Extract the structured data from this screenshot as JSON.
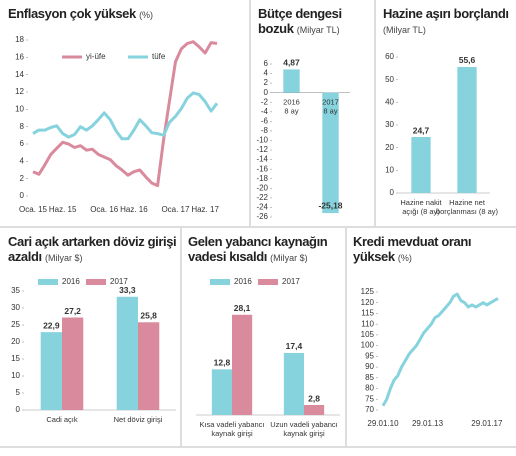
{
  "chart_data": [
    {
      "type": "line",
      "title": "Enflasyon çok yüksek",
      "subtitle": "(%)",
      "categories": [
        "Oca. 15",
        null,
        null,
        null,
        null,
        "Haz. 15",
        null,
        null,
        null,
        null,
        null,
        null,
        "Oca. 16",
        null,
        null,
        null,
        null,
        "Haz. 16",
        null,
        null,
        null,
        null,
        null,
        null,
        "Oca. 17",
        null,
        null,
        null,
        null,
        "Haz. 17",
        null,
        null
      ],
      "series": [
        {
          "name": "yi-üfe",
          "color": "#d98a9c",
          "values": [
            2.8,
            2.5,
            3.6,
            4.8,
            5.5,
            6.2,
            6.0,
            5.6,
            5.8,
            5.3,
            5.4,
            4.8,
            4.5,
            4.2,
            3.5,
            3.0,
            2.4,
            2.8,
            3.0,
            2.2,
            1.5,
            1.2,
            6.5,
            11.0,
            15.5,
            17.0,
            17.6,
            17.8,
            17.2,
            16.5,
            17.7,
            17.6
          ]
        },
        {
          "name": "tüfe",
          "color": "#86d3de",
          "values": [
            7.2,
            7.6,
            7.6,
            7.9,
            8.1,
            7.2,
            6.8,
            7.1,
            8.0,
            7.6,
            8.1,
            8.8,
            9.6,
            8.8,
            7.5,
            6.6,
            6.6,
            7.6,
            8.8,
            8.1,
            7.3,
            7.2,
            7.0,
            8.5,
            9.2,
            10.1,
            11.3,
            11.9,
            11.7,
            10.9,
            9.8,
            10.7
          ]
        }
      ],
      "ylim": [
        0,
        18
      ],
      "yticks": [
        0,
        2,
        4,
        6,
        8,
        10,
        12,
        14,
        16,
        18
      ]
    },
    {
      "type": "bar",
      "title": "Bütçe dengesi bozuk",
      "subtitle": "(Milyar TL)",
      "categories": [
        [
          "2016",
          "8 ay"
        ],
        [
          "2017",
          "8 ay"
        ]
      ],
      "values": [
        4.87,
        -25.18
      ],
      "value_labels": [
        "4,87",
        "-25,18"
      ],
      "color": "#86d3de",
      "ylim": [
        -26,
        6
      ],
      "yticks": [
        6,
        4,
        2,
        0,
        -2,
        -4,
        -6,
        -8,
        -10,
        -12,
        -14,
        -16,
        -18,
        -20,
        -22,
        -24,
        -26
      ]
    },
    {
      "type": "bar",
      "title": "Hazine aşırı borçlandı",
      "subtitle": "(Milyar TL)",
      "categories": [
        [
          "Hazine nakit",
          "açığı (8 ay)"
        ],
        [
          "Hazine net",
          "borçlanması (8 ay)"
        ]
      ],
      "values": [
        24.7,
        55.6
      ],
      "value_labels": [
        "24,7",
        "55,6"
      ],
      "color": "#86d3de",
      "ylim": [
        0,
        60
      ],
      "yticks": [
        0,
        10,
        20,
        30,
        40,
        50,
        60
      ]
    },
    {
      "type": "grouped_bar",
      "title": "Cari açık artarken döviz girişi azaldı",
      "subtitle": "(Milyar $)",
      "categories": [
        [
          "Cadi açık"
        ],
        [
          "Net döviz girişi"
        ]
      ],
      "series": [
        {
          "name": "2016",
          "color": "#86d3de",
          "values": [
            22.9,
            33.3
          ],
          "value_labels": [
            "22,9",
            "33,3"
          ]
        },
        {
          "name": "2017",
          "color": "#d98a9c",
          "values": [
            27.2,
            25.8
          ],
          "value_labels": [
            "27,2",
            "25,8"
          ]
        }
      ],
      "ylim": [
        0,
        35
      ],
      "yticks": [
        0,
        5,
        10,
        15,
        20,
        25,
        30,
        35
      ]
    },
    {
      "type": "grouped_bar",
      "title": "Gelen yabancı kaynağın vadesi kısaldı",
      "subtitle": "(Milyar $)",
      "categories": [
        [
          "Kısa vadeli yabancı",
          "kaynak girişi"
        ],
        [
          "Uzun vadeli yabancı",
          "kaynak girişi"
        ]
      ],
      "series": [
        {
          "name": "2016",
          "color": "#86d3de",
          "values": [
            12.8,
            17.4
          ],
          "value_labels": [
            "12,8",
            "17,4"
          ]
        },
        {
          "name": "2017",
          "color": "#d98a9c",
          "values": [
            28.1,
            2.8
          ],
          "value_labels": [
            "28,1",
            "2,8"
          ]
        }
      ],
      "ylim": [
        0,
        30
      ]
    },
    {
      "type": "line",
      "title": "Kredi mevduat oranı yüksek",
      "subtitle": "(%)",
      "categories": [
        "29.01.10",
        null,
        null,
        null,
        null,
        null,
        null,
        null,
        null,
        null,
        null,
        null,
        "29.01.13",
        null,
        null,
        null,
        null,
        null,
        null,
        null,
        null,
        null,
        null,
        null,
        null,
        null,
        null,
        null,
        "29.01.17",
        null,
        null,
        null
      ],
      "series": [
        {
          "color": "#86d3de",
          "values": [
            72,
            75,
            80,
            84,
            86,
            90,
            93,
            96,
            98,
            100,
            103,
            106,
            108,
            110,
            113,
            114,
            116,
            118,
            120,
            123,
            124,
            121,
            120,
            118,
            119,
            118,
            119,
            120,
            119,
            120,
            121,
            122
          ]
        }
      ],
      "ylim": [
        70,
        125
      ],
      "yticks": [
        70,
        75,
        80,
        85,
        90,
        95,
        100,
        105,
        110,
        115,
        120,
        125
      ]
    }
  ]
}
